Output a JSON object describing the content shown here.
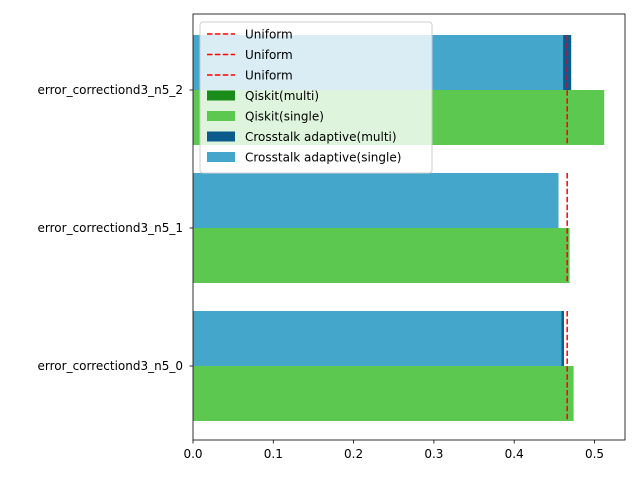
{
  "chart_data": {
    "type": "bar",
    "orientation": "horizontal",
    "categories": [
      "error_correctiond3_n5_0",
      "error_correctiond3_n5_1",
      "error_correctiond3_n5_2"
    ],
    "series": [
      {
        "name": "Qiskit(multi)",
        "color": "#1a8c1a",
        "values": [
          0.466,
          0.466,
          0.512
        ]
      },
      {
        "name": "Qiskit(single)",
        "color": "#5cc84f",
        "values": [
          0.474,
          0.469,
          0.512
        ]
      },
      {
        "name": "Crosstalk adaptive(multi)",
        "color": "#0b5c8c",
        "values": [
          0.462,
          0.455,
          0.471
        ]
      },
      {
        "name": "Crosstalk adaptive(single)",
        "color": "#45a6cc",
        "values": [
          0.459,
          0.455,
          0.461
        ]
      }
    ],
    "uniform": {
      "name": "Uniform",
      "color": "#ff0000",
      "values": [
        0.466,
        0.466,
        0.466
      ]
    },
    "legend_entries": [
      {
        "label": "Uniform",
        "kind": "line",
        "color": "#ff0000"
      },
      {
        "label": "Uniform",
        "kind": "line",
        "color": "#ff0000"
      },
      {
        "label": "Uniform",
        "kind": "line",
        "color": "#ff0000"
      },
      {
        "label": "Qiskit(multi)",
        "kind": "patch",
        "color": "#1a8c1a"
      },
      {
        "label": "Qiskit(single)",
        "kind": "patch",
        "color": "#5cc84f"
      },
      {
        "label": "Crosstalk adaptive(multi)",
        "kind": "patch",
        "color": "#0b5c8c"
      },
      {
        "label": "Crosstalk adaptive(single)",
        "kind": "patch",
        "color": "#45a6cc"
      }
    ],
    "xticks": [
      "0.0",
      "0.1",
      "0.2",
      "0.3",
      "0.4",
      "0.5"
    ],
    "xlim": [
      0,
      0.538
    ],
    "title": "",
    "xlabel": "",
    "ylabel": "",
    "grid": false,
    "legend_position": "upper-left"
  }
}
